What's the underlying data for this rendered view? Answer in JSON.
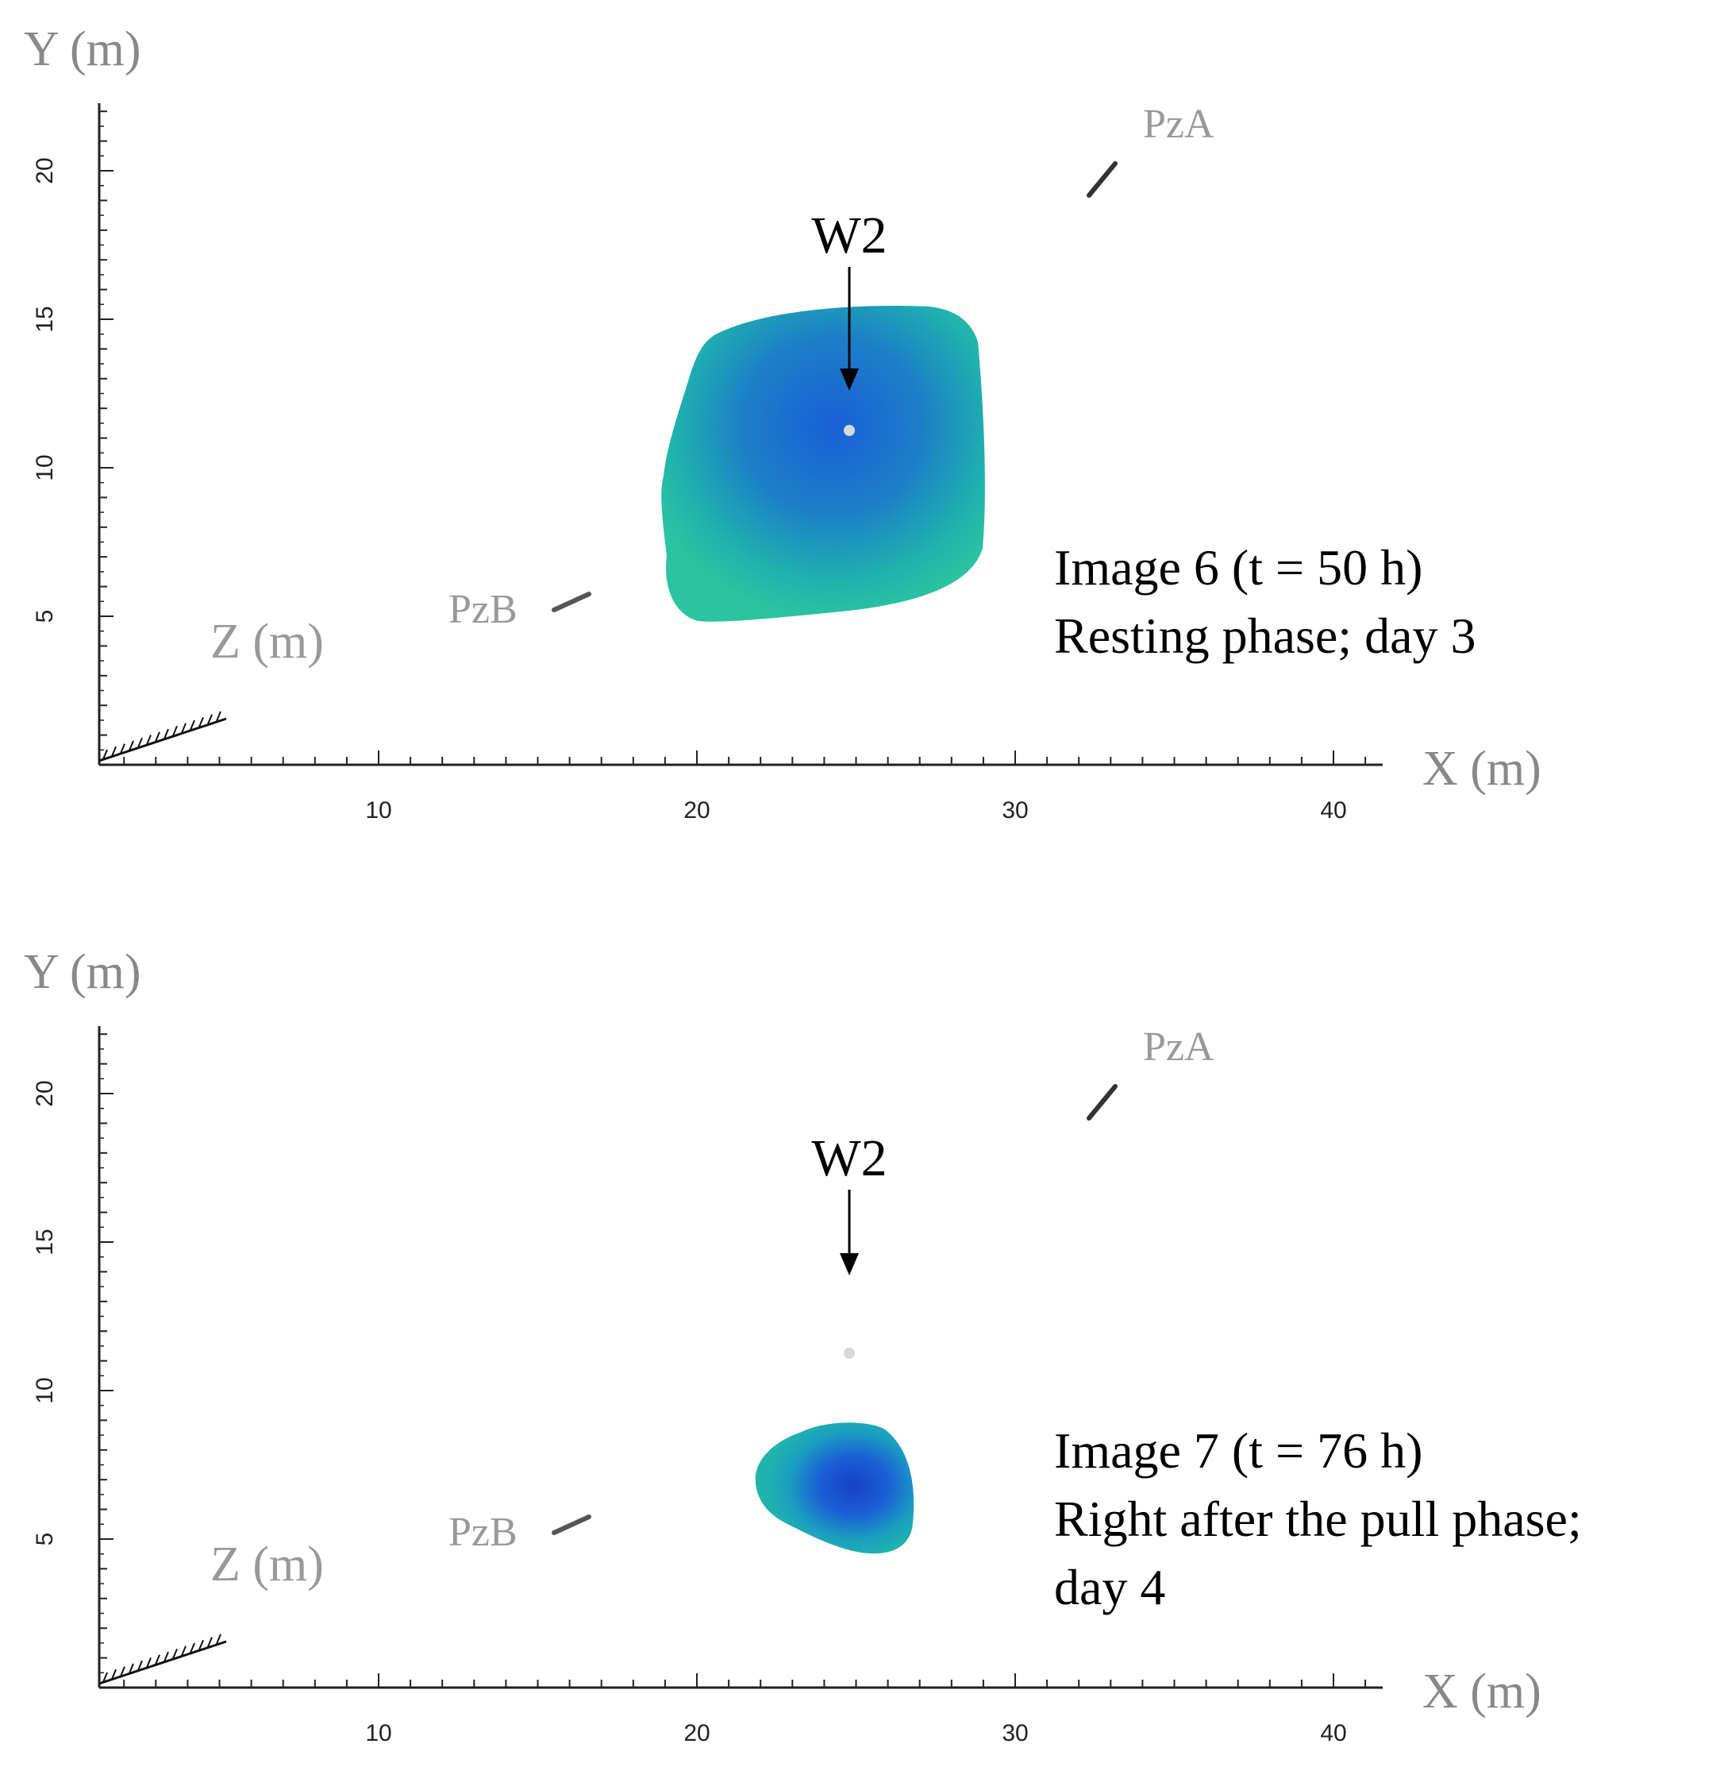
{
  "panels": [
    {
      "id": "image-6",
      "y_axis_label": "Y (m)",
      "x_axis_label": "X (m)",
      "z_axis_label": "Z (m)",
      "x_ticks": [
        "10",
        "20",
        "30",
        "40"
      ],
      "y_ticks": [
        "20",
        "15",
        "10",
        "5"
      ],
      "well_label": "W2",
      "piezometer_a_label": "PzA",
      "piezometer_b_label": "PzB",
      "caption_lines": [
        "Image 6 (t = 50 h)",
        "Resting phase; day 3"
      ],
      "plume": "large"
    },
    {
      "id": "image-7",
      "y_axis_label": "Y (m)",
      "x_axis_label": "X (m)",
      "z_axis_label": "Z (m)",
      "x_ticks": [
        "10",
        "20",
        "30",
        "40"
      ],
      "y_ticks": [
        "20",
        "15",
        "10",
        "5"
      ],
      "well_label": "W2",
      "piezometer_a_label": "PzA",
      "piezometer_b_label": "PzB",
      "caption_lines": [
        "Image 7 (t = 76 h)",
        "Right after the pull phase;",
        "day 4"
      ],
      "plume": "small"
    }
  ],
  "colors": {
    "plume_outer": "#1fb3ad",
    "plume_core": "#1a5fd6",
    "axis": "#222222",
    "annotation_gray": "#999999"
  }
}
